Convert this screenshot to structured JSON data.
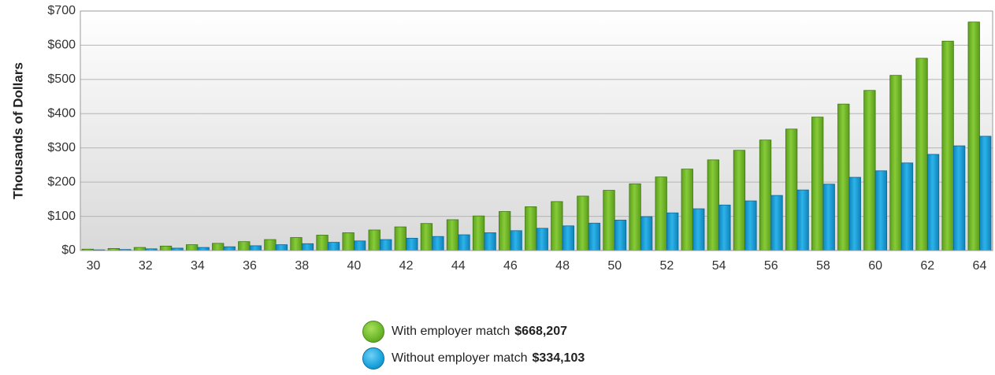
{
  "chart_data": {
    "type": "bar",
    "ylabel": "Thousands of Dollars",
    "ylim": [
      0,
      700
    ],
    "y_ticks": [
      "$0",
      "$100",
      "$200",
      "$300",
      "$400",
      "$500",
      "$600",
      "$700"
    ],
    "grid": true,
    "legend_placement": "bottom-center",
    "categories": [
      30,
      31,
      32,
      33,
      34,
      35,
      36,
      37,
      38,
      39,
      40,
      41,
      42,
      43,
      44,
      45,
      46,
      47,
      48,
      49,
      50,
      51,
      52,
      53,
      54,
      55,
      56,
      57,
      58,
      59,
      60,
      61,
      62,
      63,
      64
    ],
    "x_tick_labels": [
      30,
      32,
      34,
      36,
      38,
      40,
      42,
      44,
      46,
      48,
      50,
      52,
      54,
      56,
      58,
      60,
      62,
      64
    ],
    "series": [
      {
        "name": "With employer match",
        "total": "$668,207",
        "color": "#7cc12e",
        "values": [
          4,
          6,
          9,
          13,
          17,
          21,
          26,
          32,
          38,
          45,
          52,
          60,
          69,
          79,
          90,
          101,
          114,
          128,
          143,
          159,
          176,
          195,
          215,
          238,
          265,
          293,
          323,
          355,
          390,
          428,
          468,
          512,
          562,
          612,
          668
        ]
      },
      {
        "name": "Without employer match",
        "total": "$334,103",
        "color": "#1aa3dc",
        "values": [
          2,
          3,
          5,
          7,
          9,
          11,
          14,
          17,
          20,
          24,
          28,
          32,
          36,
          41,
          46,
          52,
          58,
          65,
          72,
          80,
          89,
          99,
          110,
          122,
          133,
          145,
          161,
          177,
          194,
          214,
          233,
          256,
          281,
          306,
          334
        ]
      }
    ]
  }
}
